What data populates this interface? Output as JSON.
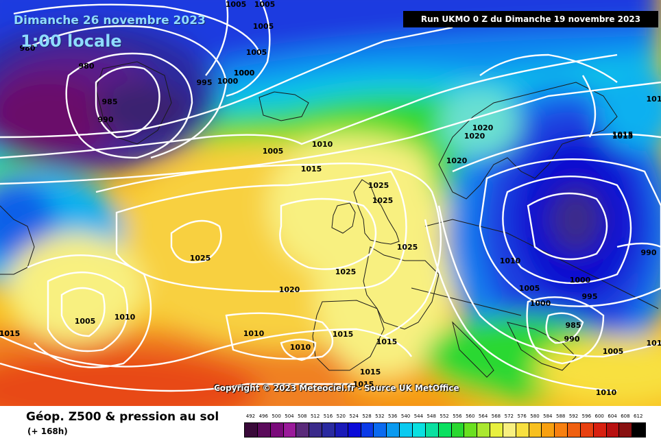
{
  "header": {
    "date_label": "Dimanche 26 novembre 2023",
    "time_label": "1:00 locale",
    "run_label": "Run UKMO 0 Z du Dimanche 19 novembre 2023"
  },
  "copyright": "Copyright © 2023 Meteociel.fr - Source UK MetOffice",
  "footer": {
    "parameter_title": "Géop. Z500 & pression au sol",
    "forecast_hour": "(+ 168h)"
  },
  "legend": {
    "scale_values": [
      "492",
      "496",
      "500",
      "504",
      "508",
      "512",
      "516",
      "520",
      "524",
      "528",
      "532",
      "536",
      "540",
      "544",
      "548",
      "552",
      "556",
      "560",
      "564",
      "568",
      "572",
      "576",
      "580",
      "584",
      "588",
      "592",
      "596",
      "600",
      "604",
      "608",
      "612"
    ],
    "colors": [
      "#3a0a3a",
      "#5a0a5a",
      "#7a0a7a",
      "#9a1a9a",
      "#5a2a7a",
      "#3a2a8a",
      "#2a2aa0",
      "#1a1ab8",
      "#0a0ad8",
      "#0a3ae8",
      "#0a6af0",
      "#0a9af0",
      "#0acaf0",
      "#0ae0e0",
      "#0ae0a0",
      "#0ae060",
      "#2ad830",
      "#6ae020",
      "#aae830",
      "#e8f040",
      "#f8f080",
      "#f8e040",
      "#f8c020",
      "#f8a010",
      "#f88010",
      "#f06010",
      "#e84010",
      "#d82010",
      "#b81010",
      "#881010",
      "#000000"
    ]
  },
  "map": {
    "isobar_labels": [
      {
        "text": "1005"
      },
      {
        "text": "1005"
      },
      {
        "text": "1005"
      },
      {
        "text": "1005"
      },
      {
        "text": "980"
      },
      {
        "text": "980"
      },
      {
        "text": "995"
      },
      {
        "text": "1000"
      },
      {
        "text": "1000"
      },
      {
        "text": "985"
      },
      {
        "text": "990"
      },
      {
        "text": "1000"
      },
      {
        "text": "1005"
      },
      {
        "text": "1010"
      },
      {
        "text": "1015"
      },
      {
        "text": "1020"
      },
      {
        "text": "1020"
      },
      {
        "text": "1020"
      },
      {
        "text": "1015"
      },
      {
        "text": "1025"
      },
      {
        "text": "1025"
      },
      {
        "text": "1025"
      },
      {
        "text": "1025"
      },
      {
        "text": "1025"
      },
      {
        "text": "1020"
      },
      {
        "text": "1010"
      },
      {
        "text": "1010"
      },
      {
        "text": "1005"
      },
      {
        "text": "1010"
      },
      {
        "text": "1015"
      },
      {
        "text": "1015"
      },
      {
        "text": "1015"
      },
      {
        "text": "1015"
      },
      {
        "text": "1015"
      },
      {
        "text": "1010"
      },
      {
        "text": "1005"
      },
      {
        "text": "1000"
      },
      {
        "text": "995"
      },
      {
        "text": "985"
      },
      {
        "text": "990"
      },
      {
        "text": "1005"
      },
      {
        "text": "1000"
      },
      {
        "text": "990"
      },
      {
        "text": "1010"
      },
      {
        "text": "1015"
      },
      {
        "text": "101"
      },
      {
        "text": "101"
      },
      {
        "text": "1015"
      }
    ]
  }
}
